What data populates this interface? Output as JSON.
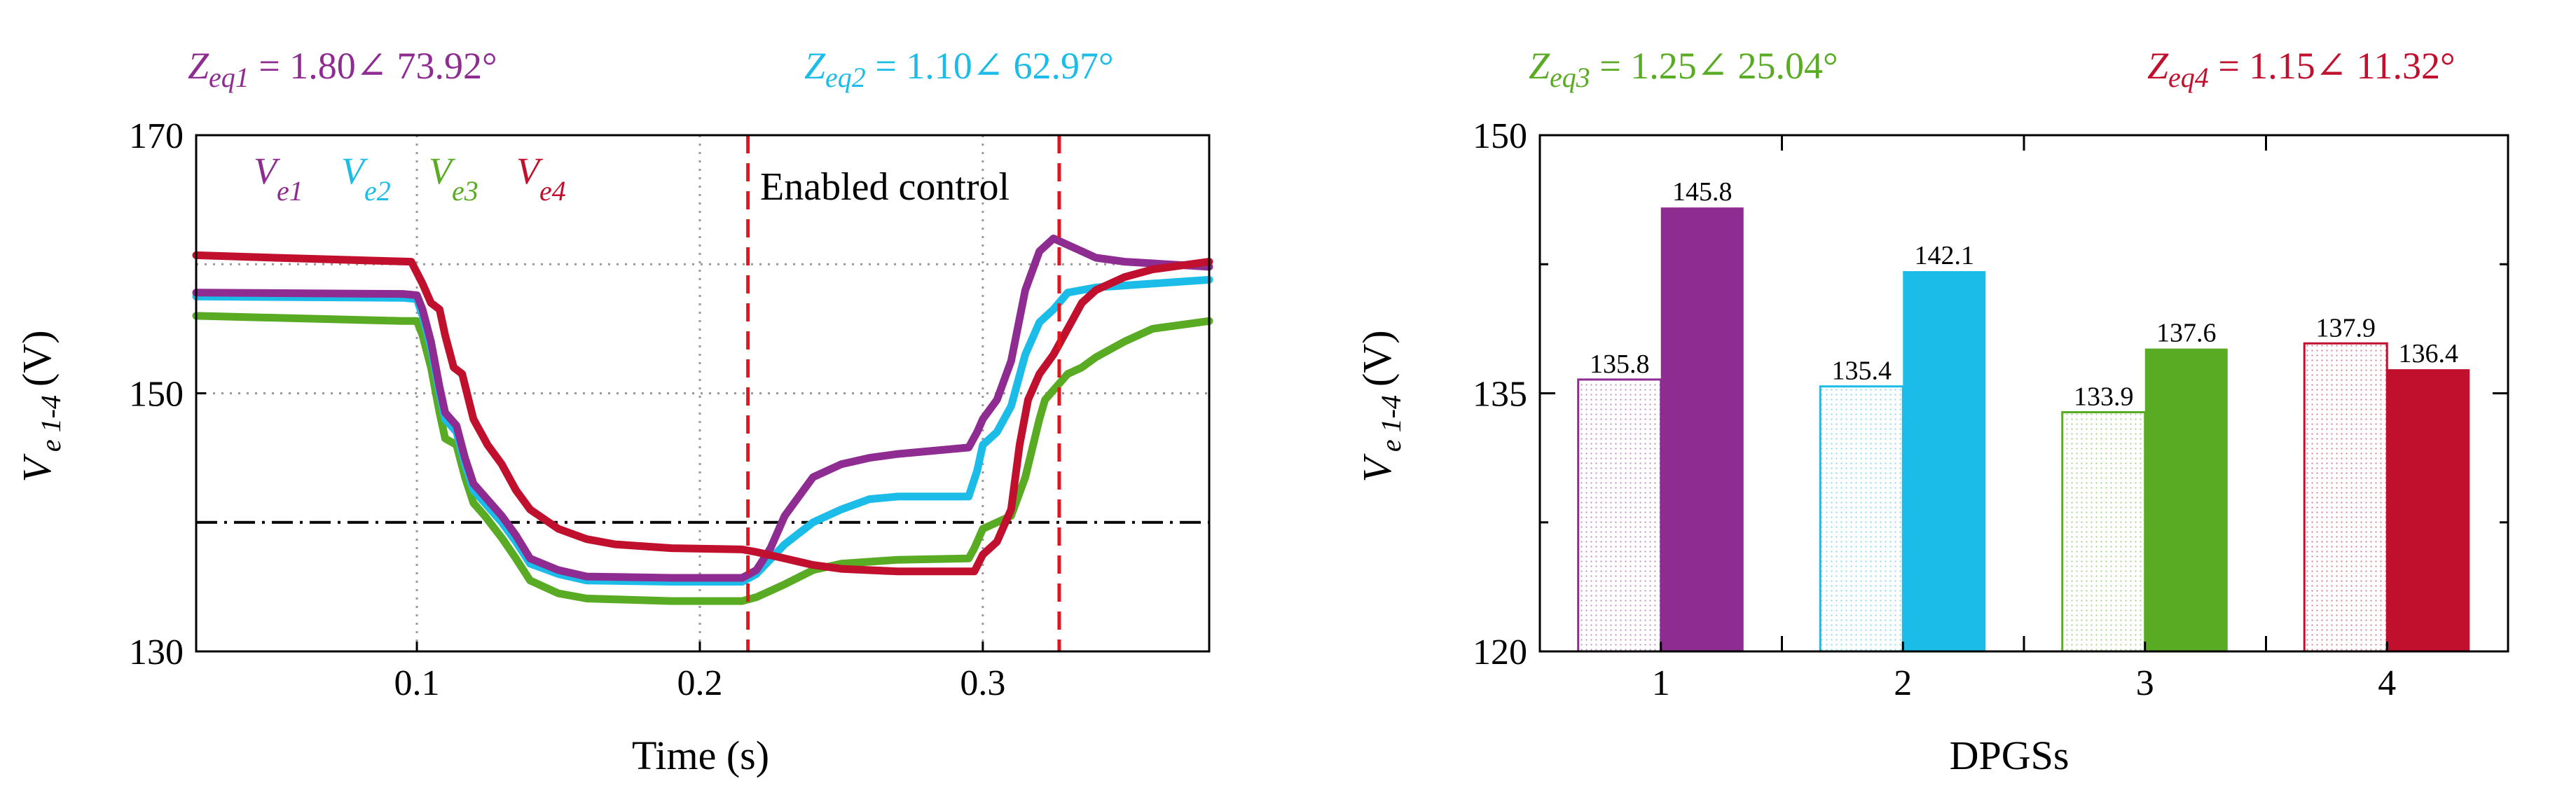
{
  "chart_data": [
    {
      "type": "line",
      "xlabel": "Time (s)",
      "ylabel": {
        "main": "V",
        "sub": "e 1-4",
        "unit": "(V)"
      },
      "xlim": [
        0.022,
        0.38
      ],
      "ylim": [
        130,
        170
      ],
      "xticks": [
        "0.1",
        "0.2",
        "0.3"
      ],
      "xtick_values": [
        0.1,
        0.2,
        0.3
      ],
      "yticks": [
        "130",
        "150",
        "170"
      ],
      "ytick_values": [
        130,
        150,
        170
      ],
      "grid": "dotted",
      "reference_level": 140,
      "events": [
        0.217,
        0.327
      ],
      "annotation": "Enabled control",
      "zeq": [
        {
          "sym": "Z",
          "sub": "eq1",
          "value": " = 1.80∠ 73.92°",
          "color": "#8e2c92"
        },
        {
          "sym": "Z",
          "sub": "eq2",
          "value": " = 1.10∠ 62.97°",
          "color": "#1bbde8"
        }
      ],
      "legend": [
        {
          "sym": "V",
          "sub": "e1",
          "color": "#8e2c92"
        },
        {
          "sym": "V",
          "sub": "e2",
          "color": "#1bbde8"
        },
        {
          "sym": "V",
          "sub": "e3",
          "color": "#5aab24"
        },
        {
          "sym": "V",
          "sub": "e4",
          "color": "#c0102e"
        }
      ],
      "series": [
        {
          "color": "#5aab24",
          "points": [
            [
              0.022,
              156.0
            ],
            [
              0.095,
              155.6
            ],
            [
              0.1,
              155.6
            ],
            [
              0.102,
              154.5
            ],
            [
              0.105,
              152.0
            ],
            [
              0.108,
              148.5
            ],
            [
              0.11,
              146.5
            ],
            [
              0.114,
              146.0
            ],
            [
              0.117,
              143.5
            ],
            [
              0.12,
              141.5
            ],
            [
              0.124,
              140.5
            ],
            [
              0.13,
              138.8
            ],
            [
              0.135,
              137.2
            ],
            [
              0.14,
              135.5
            ],
            [
              0.15,
              134.5
            ],
            [
              0.16,
              134.1
            ],
            [
              0.19,
              133.9
            ],
            [
              0.215,
              133.9
            ],
            [
              0.22,
              134.2
            ],
            [
              0.23,
              135.2
            ],
            [
              0.24,
              136.3
            ],
            [
              0.25,
              136.8
            ],
            [
              0.27,
              137.1
            ],
            [
              0.295,
              137.2
            ],
            [
              0.297,
              138.0
            ],
            [
              0.3,
              139.5
            ],
            [
              0.31,
              140.5
            ],
            [
              0.315,
              143.5
            ],
            [
              0.32,
              148.0
            ],
            [
              0.322,
              149.5
            ],
            [
              0.33,
              151.5
            ],
            [
              0.335,
              152.0
            ],
            [
              0.34,
              152.8
            ],
            [
              0.35,
              154.0
            ],
            [
              0.36,
              155.0
            ],
            [
              0.38,
              155.6
            ]
          ]
        },
        {
          "color": "#1bbde8",
          "points": [
            [
              0.022,
              157.5
            ],
            [
              0.095,
              157.4
            ],
            [
              0.1,
              157.3
            ],
            [
              0.102,
              156.0
            ],
            [
              0.105,
              153.5
            ],
            [
              0.108,
              150.0
            ],
            [
              0.11,
              148.0
            ],
            [
              0.114,
              147.0
            ],
            [
              0.117,
              144.5
            ],
            [
              0.12,
              142.5
            ],
            [
              0.124,
              141.5
            ],
            [
              0.13,
              140.0
            ],
            [
              0.135,
              138.5
            ],
            [
              0.14,
              136.8
            ],
            [
              0.15,
              136.0
            ],
            [
              0.16,
              135.5
            ],
            [
              0.19,
              135.4
            ],
            [
              0.215,
              135.4
            ],
            [
              0.22,
              136.0
            ],
            [
              0.23,
              138.3
            ],
            [
              0.24,
              140.0
            ],
            [
              0.25,
              141.0
            ],
            [
              0.26,
              141.8
            ],
            [
              0.27,
              142.0
            ],
            [
              0.295,
              142.0
            ],
            [
              0.298,
              144.0
            ],
            [
              0.3,
              146.0
            ],
            [
              0.305,
              147.0
            ],
            [
              0.31,
              149.0
            ],
            [
              0.315,
              153.0
            ],
            [
              0.32,
              155.5
            ],
            [
              0.325,
              156.5
            ],
            [
              0.33,
              157.8
            ],
            [
              0.34,
              158.2
            ],
            [
              0.36,
              158.5
            ],
            [
              0.38,
              158.8
            ]
          ]
        },
        {
          "color": "#8e2c92",
          "points": [
            [
              0.022,
              157.8
            ],
            [
              0.095,
              157.7
            ],
            [
              0.1,
              157.6
            ],
            [
              0.102,
              156.5
            ],
            [
              0.105,
              154.0
            ],
            [
              0.108,
              150.5
            ],
            [
              0.11,
              148.5
            ],
            [
              0.114,
              147.5
            ],
            [
              0.117,
              145.0
            ],
            [
              0.12,
              143.0
            ],
            [
              0.124,
              142.0
            ],
            [
              0.13,
              140.5
            ],
            [
              0.135,
              139.0
            ],
            [
              0.14,
              137.2
            ],
            [
              0.15,
              136.3
            ],
            [
              0.16,
              135.8
            ],
            [
              0.19,
              135.7
            ],
            [
              0.215,
              135.7
            ],
            [
              0.22,
              136.3
            ],
            [
              0.225,
              138.0
            ],
            [
              0.23,
              140.5
            ],
            [
              0.235,
              142.0
            ],
            [
              0.24,
              143.5
            ],
            [
              0.25,
              144.5
            ],
            [
              0.26,
              145.0
            ],
            [
              0.27,
              145.3
            ],
            [
              0.295,
              145.8
            ],
            [
              0.298,
              147.0
            ],
            [
              0.3,
              148.0
            ],
            [
              0.305,
              149.5
            ],
            [
              0.31,
              152.5
            ],
            [
              0.315,
              158.0
            ],
            [
              0.32,
              161.0
            ],
            [
              0.325,
              162.0
            ],
            [
              0.33,
              161.5
            ],
            [
              0.335,
              161.0
            ],
            [
              0.34,
              160.5
            ],
            [
              0.35,
              160.2
            ],
            [
              0.38,
              159.8
            ]
          ]
        },
        {
          "color": "#c0102e",
          "points": [
            [
              0.022,
              160.7
            ],
            [
              0.05,
              160.5
            ],
            [
              0.098,
              160.2
            ],
            [
              0.102,
              158.5
            ],
            [
              0.105,
              157.0
            ],
            [
              0.108,
              156.5
            ],
            [
              0.11,
              154.5
            ],
            [
              0.113,
              152.0
            ],
            [
              0.116,
              151.5
            ],
            [
              0.12,
              148.0
            ],
            [
              0.125,
              146.0
            ],
            [
              0.13,
              144.5
            ],
            [
              0.135,
              142.5
            ],
            [
              0.14,
              141.0
            ],
            [
              0.15,
              139.5
            ],
            [
              0.16,
              138.7
            ],
            [
              0.17,
              138.3
            ],
            [
              0.19,
              138.0
            ],
            [
              0.215,
              137.9
            ],
            [
              0.22,
              137.7
            ],
            [
              0.23,
              137.2
            ],
            [
              0.24,
              136.7
            ],
            [
              0.25,
              136.4
            ],
            [
              0.27,
              136.2
            ],
            [
              0.297,
              136.2
            ],
            [
              0.3,
              137.5
            ],
            [
              0.305,
              138.5
            ],
            [
              0.31,
              141.0
            ],
            [
              0.313,
              146.0
            ],
            [
              0.316,
              149.5
            ],
            [
              0.32,
              151.5
            ],
            [
              0.325,
              153.0
            ],
            [
              0.33,
              155.0
            ],
            [
              0.335,
              157.0
            ],
            [
              0.34,
              158.0
            ],
            [
              0.35,
              159.0
            ],
            [
              0.36,
              159.6
            ],
            [
              0.38,
              160.2
            ]
          ]
        }
      ]
    },
    {
      "type": "bar",
      "xlabel": "DPGSs",
      "ylabel": {
        "main": "V",
        "sub": "e 1-4",
        "unit": "(V)"
      },
      "ylim": [
        120,
        150
      ],
      "yticks": [
        "120",
        "135",
        "150"
      ],
      "ytick_values": [
        120,
        135,
        150
      ],
      "minor_ytick_values": [
        127.5,
        142.5
      ],
      "categories": [
        "1",
        "2",
        "3",
        "4"
      ],
      "zeq": [
        {
          "sym": "Z",
          "sub": "eq3",
          "value": " = 1.25∠ 25.04°",
          "color": "#5aab24"
        },
        {
          "sym": "Z",
          "sub": "eq4",
          "value": " = 1.15∠ 11.32°",
          "color": "#c0102e"
        }
      ],
      "colors": [
        "#8e2c92",
        "#1bbde8",
        "#5aab24",
        "#c0102e"
      ],
      "series": [
        {
          "style": "hatched",
          "values": [
            135.8,
            135.4,
            133.9,
            137.9
          ],
          "labels": [
            "135.8",
            "135.4",
            "133.9",
            "137.9"
          ]
        },
        {
          "style": "solid",
          "values": [
            145.8,
            142.1,
            137.6,
            136.4
          ],
          "labels": [
            "145.8",
            "142.1",
            "137.6",
            "136.4"
          ]
        }
      ]
    }
  ]
}
